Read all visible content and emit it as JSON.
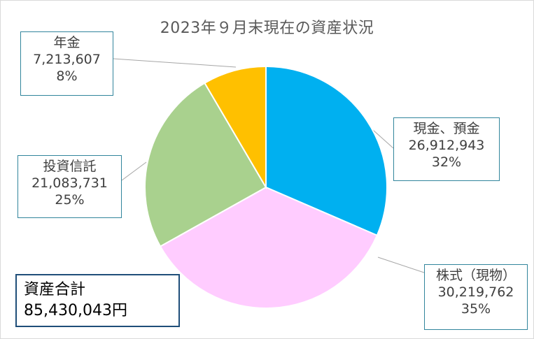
{
  "chart_data": {
    "type": "pie",
    "title": "2023年９月末現在の資産状況",
    "slices": [
      {
        "label": "現金、預金",
        "value": 26912943,
        "value_text": "26,912,943",
        "percent_text": "32%",
        "color": "#00b0f0"
      },
      {
        "label": "株式（現物）",
        "value": 30219762,
        "value_text": "30,219,762",
        "percent_text": "35%",
        "color": "#ffccff"
      },
      {
        "label": "投資信託",
        "value": 21083731,
        "value_text": "21,083,731",
        "percent_text": "25%",
        "color": "#a9d18e"
      },
      {
        "label": "年金",
        "value": 7213607,
        "value_text": "7,213,607",
        "percent_text": "8%",
        "color": "#ffc000"
      }
    ],
    "start_angle_deg": 0,
    "direction": "clockwise"
  },
  "total": {
    "label": "資産合計",
    "amount": "85,430,043円"
  }
}
